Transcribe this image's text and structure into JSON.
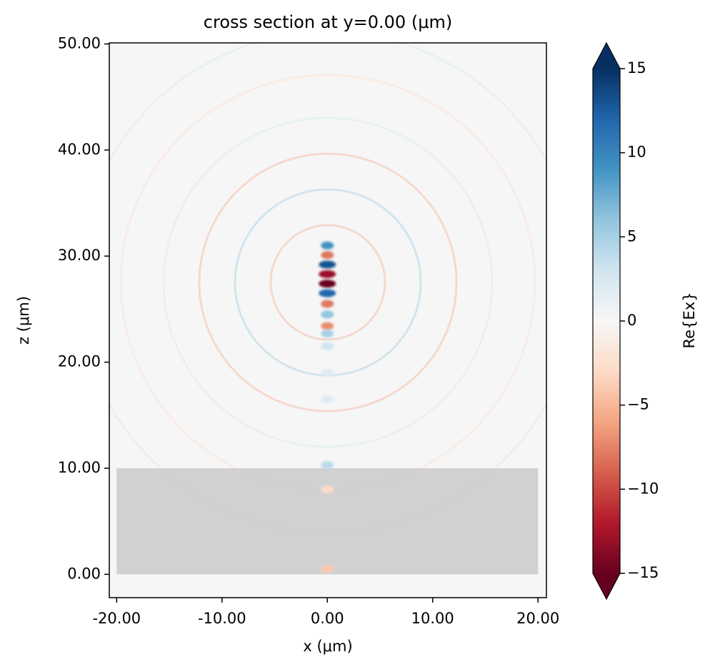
{
  "chart_data": {
    "type": "heatmap",
    "title": "cross section at y=0.00 (μm)",
    "x_label": "x (μm)",
    "y_label": "z (μm)",
    "colorbar_label": "Re{Ex}",
    "xlim": [
      -20.7,
      20.8
    ],
    "ylim": [
      -2.2,
      50.1
    ],
    "xticks": [
      {
        "value": -20,
        "label": "-20.00"
      },
      {
        "value": -10,
        "label": "-10.00"
      },
      {
        "value": 0,
        "label": "0.00"
      },
      {
        "value": 10,
        "label": "10.00"
      },
      {
        "value": 20,
        "label": "20.00"
      }
    ],
    "yticks": [
      {
        "value": 0,
        "label": "0.00"
      },
      {
        "value": 10,
        "label": "10.00"
      },
      {
        "value": 20,
        "label": "20.00"
      },
      {
        "value": 30,
        "label": "30.00"
      },
      {
        "value": 40,
        "label": "40.00"
      },
      {
        "value": 50,
        "label": "50.00"
      }
    ],
    "clim": [
      -15,
      15
    ],
    "cticks": [
      15,
      10,
      5,
      0,
      {
        "value": -5,
        "label": "−5"
      },
      {
        "value": -10,
        "label": "−10"
      },
      {
        "value": -15,
        "label": "−15"
      }
    ],
    "colormap": [
      "#67001f",
      "#b2182b",
      "#d6604d",
      "#f4a582",
      "#fddbc7",
      "#f7f7f7",
      "#d1e5f0",
      "#92c5de",
      "#4393c3",
      "#2166ac",
      "#053061"
    ],
    "substrate": {
      "x": [
        -20,
        20
      ],
      "z": [
        0,
        10
      ],
      "color": "#c8c8c8"
    },
    "field_samples": {
      "x": [
        0,
        0,
        0,
        0,
        0,
        0,
        0,
        0,
        0,
        0,
        0,
        0,
        0,
        0,
        0,
        0
      ],
      "z": [
        31.0,
        30.1,
        29.2,
        28.3,
        27.4,
        26.5,
        25.5,
        24.5,
        23.4,
        22.7,
        21.5,
        19.0,
        16.5,
        10.3,
        8.0,
        0.5
      ],
      "values": [
        9,
        -8,
        13,
        -13,
        -15,
        12,
        -8,
        6,
        -7,
        5,
        3,
        2,
        2,
        4,
        -3,
        -4
      ]
    }
  }
}
